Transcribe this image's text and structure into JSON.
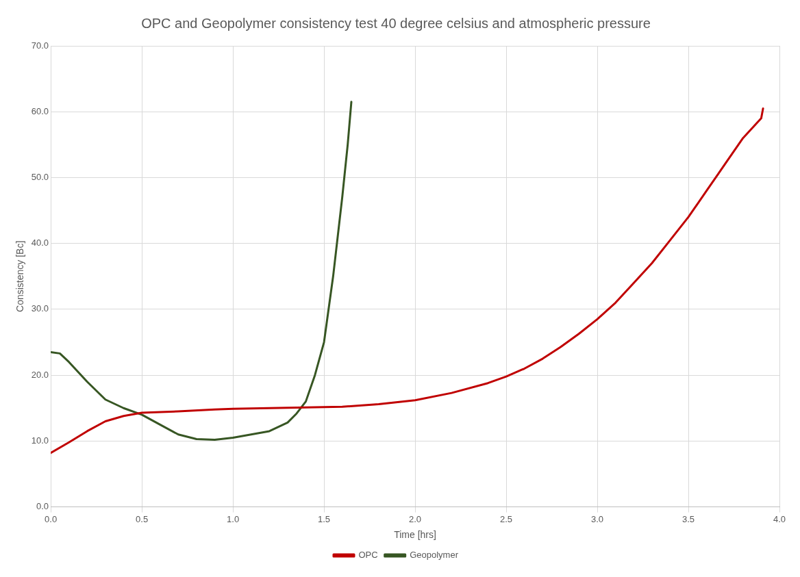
{
  "chart_data": {
    "type": "line",
    "title": "OPC and Geopolymer consistency test 40 degree celsius and atmospheric pressure",
    "xlabel": "Time [hrs]",
    "ylabel": "Consistency [Bc]",
    "xlim": [
      0,
      4
    ],
    "xticks": [
      {
        "value": 0,
        "label": "0.0"
      },
      {
        "value": 0.5,
        "label": "0.5"
      },
      {
        "value": 1,
        "label": "1.0"
      },
      {
        "value": 1.5,
        "label": "1.5"
      },
      {
        "value": 2,
        "label": "2.0"
      },
      {
        "value": 2.5,
        "label": "2.5"
      },
      {
        "value": 3,
        "label": "3.0"
      },
      {
        "value": 3.5,
        "label": "3.5"
      },
      {
        "value": 4,
        "label": "4.0"
      }
    ],
    "ylim": [
      0,
      70
    ],
    "yticks": [
      {
        "value": 0,
        "label": "0.0"
      },
      {
        "value": 10,
        "label": "10.0"
      },
      {
        "value": 20,
        "label": "20.0"
      },
      {
        "value": 30,
        "label": "30.0"
      },
      {
        "value": 40,
        "label": "40.0"
      },
      {
        "value": 50,
        "label": "50.0"
      },
      {
        "value": 60,
        "label": "60.0"
      },
      {
        "value": 70,
        "label": "70.0"
      }
    ],
    "grid": true,
    "legend": "bottom",
    "marker": "none",
    "line_style": "solid",
    "series": [
      {
        "name": "OPC",
        "color": "#c00000",
        "x": [
          0,
          0.1,
          0.2,
          0.3,
          0.4,
          0.5,
          0.7,
          0.9,
          1.0,
          1.2,
          1.4,
          1.6,
          1.8,
          2.0,
          2.2,
          2.4,
          2.5,
          2.6,
          2.7,
          2.8,
          2.9,
          3.0,
          3.1,
          3.2,
          3.3,
          3.4,
          3.5,
          3.6,
          3.7,
          3.8,
          3.9,
          3.91
        ],
        "values": [
          8.2,
          9.8,
          11.5,
          13,
          13.8,
          14.3,
          14.5,
          14.8,
          14.9,
          15,
          15.1,
          15.2,
          15.6,
          16.2,
          17.3,
          18.8,
          19.8,
          21,
          22.5,
          24.3,
          26.3,
          28.5,
          31,
          34,
          37,
          40.5,
          44,
          48,
          52,
          56,
          59,
          60.5
        ]
      },
      {
        "name": "Geopolymer",
        "color": "#375623",
        "x": [
          0,
          0.05,
          0.1,
          0.2,
          0.3,
          0.4,
          0.5,
          0.6,
          0.7,
          0.8,
          0.9,
          1.0,
          1.1,
          1.2,
          1.3,
          1.35,
          1.4,
          1.45,
          1.5,
          1.55,
          1.6,
          1.63,
          1.65
        ],
        "values": [
          23.5,
          23.3,
          22,
          19,
          16.3,
          15,
          14,
          12.5,
          11,
          10.3,
          10.2,
          10.5,
          11,
          11.5,
          12.8,
          14.2,
          16,
          20,
          25,
          35,
          47,
          55,
          61.5
        ]
      }
    ]
  }
}
